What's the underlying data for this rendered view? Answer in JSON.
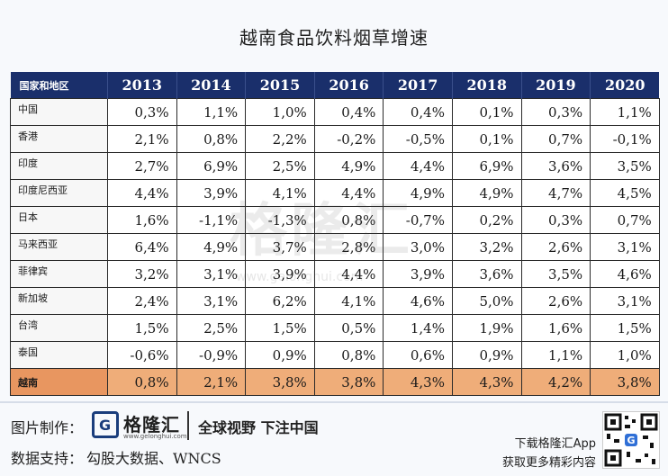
{
  "title": "越南食品饮料烟草增速",
  "table": {
    "header_label": "国家和地区",
    "years": [
      "2013",
      "2014",
      "2015",
      "2016",
      "2017",
      "2018",
      "2019",
      "2020"
    ],
    "rows": [
      {
        "region": "中国",
        "values": [
          "0,3%",
          "1,1%",
          "1,0%",
          "0,4%",
          "0,4%",
          "0,1%",
          "0,3%",
          "1,1%"
        ]
      },
      {
        "region": "香港",
        "values": [
          "2,1%",
          "0,8%",
          "2,2%",
          "-0,2%",
          "-0,5%",
          "0,1%",
          "0,7%",
          "-0,1%"
        ]
      },
      {
        "region": "印度",
        "values": [
          "2,7%",
          "6,9%",
          "2,5%",
          "4,9%",
          "4,4%",
          "6,9%",
          "3,6%",
          "3,5%"
        ]
      },
      {
        "region": "印度尼西亚",
        "values": [
          "4,4%",
          "3,9%",
          "4,1%",
          "4,4%",
          "4,9%",
          "4,9%",
          "4,7%",
          "4,5%"
        ]
      },
      {
        "region": "日本",
        "values": [
          "1,6%",
          "-1,1%",
          "-1,3%",
          "0,8%",
          "-0,7%",
          "0,2%",
          "0,3%",
          "0,7%"
        ]
      },
      {
        "region": "马来西亚",
        "values": [
          "6,4%",
          "4,9%",
          "3,7%",
          "2,8%",
          "3,0%",
          "3,2%",
          "2,6%",
          "3,1%"
        ]
      },
      {
        "region": "菲律宾",
        "values": [
          "3,2%",
          "3,1%",
          "3,9%",
          "4,4%",
          "3,9%",
          "3,6%",
          "3,5%",
          "4,6%"
        ]
      },
      {
        "region": "新加坡",
        "values": [
          "2,4%",
          "3,1%",
          "6,2%",
          "4,1%",
          "4,6%",
          "5,0%",
          "2,6%",
          "3,1%"
        ]
      },
      {
        "region": "台湾",
        "values": [
          "1,5%",
          "2,5%",
          "1,5%",
          "0,5%",
          "1,4%",
          "1,9%",
          "1,6%",
          "1,5%"
        ]
      },
      {
        "region": "泰国",
        "values": [
          "-0,6%",
          "-0,9%",
          "0,9%",
          "0,8%",
          "0,6%",
          "0,9%",
          "1,1%",
          "1,0%"
        ]
      },
      {
        "region": "越南",
        "values": [
          "0,8%",
          "2,1%",
          "3,8%",
          "3,8%",
          "4,3%",
          "4,3%",
          "4,2%",
          "3,8%"
        ],
        "highlight": true
      }
    ]
  },
  "watermark": {
    "text": "格隆汇",
    "url": "www.gelonghui.com"
  },
  "footer": {
    "made_by_label": "图片制作：",
    "logo_letter": "G",
    "logo_name": "格隆汇",
    "logo_url": "www.gelonghui.com",
    "slogan": "全球视野 下注中国",
    "source_label": "数据支持：",
    "source": "勾股大数据、WNCS",
    "app_line1": "下载格隆汇App",
    "app_line2": "获取更多精彩内容"
  },
  "colors": {
    "header_bg": "#1a2f6b",
    "highlight_bg": "#efad79",
    "brand": "#1a3d7c"
  },
  "icons": {
    "logo": "gelonghui-g-logo-icon",
    "qr": "qr-code-icon"
  }
}
